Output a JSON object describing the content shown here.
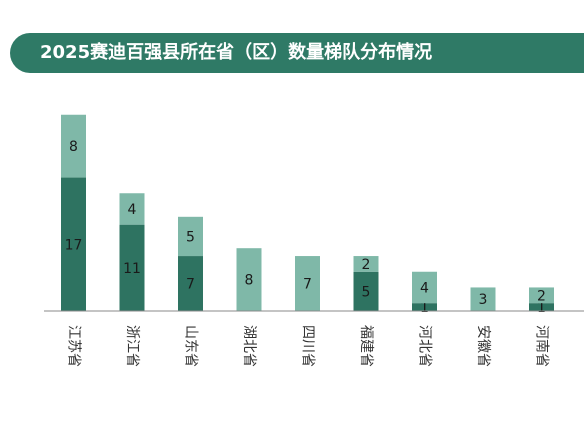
{
  "title": "2025赛迪百强县所在省（区）数量梯队分布情况",
  "colors": {
    "title_bg": "#2f7a66",
    "dark": "#2e7361",
    "light": "#7fb8a8",
    "axis": "#8a8a8a"
  },
  "chart_data": {
    "type": "bar",
    "stacked": true,
    "categories": [
      "江苏省",
      "浙江省",
      "山东省",
      "湖北省",
      "四川省",
      "福建省",
      "河北省",
      "安徽省",
      "河南省"
    ],
    "series": [
      {
        "values": [
          17,
          11,
          7,
          0,
          0,
          5,
          1,
          0,
          1
        ]
      },
      {
        "values": [
          8,
          4,
          5,
          8,
          7,
          2,
          4,
          3,
          2
        ]
      }
    ]
  }
}
